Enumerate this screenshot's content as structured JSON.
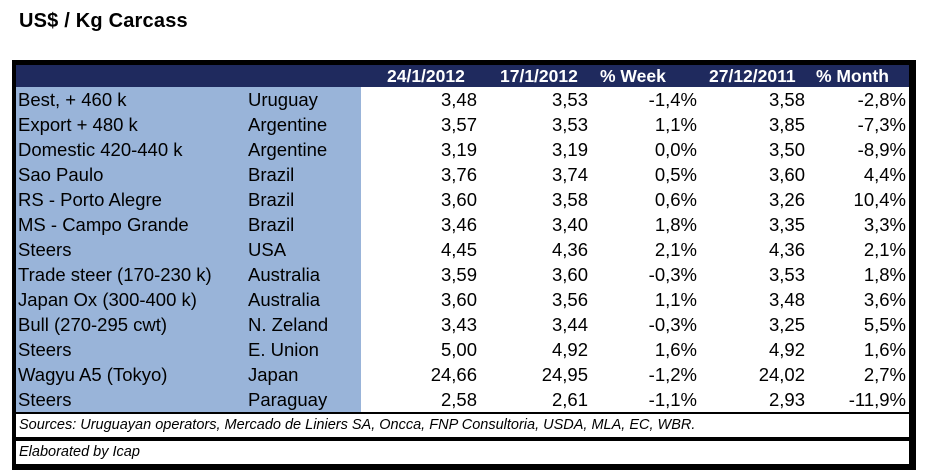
{
  "title": "US$ / Kg Carcass",
  "header": {
    "col1": "24/1/2012",
    "col2": "17/1/2012",
    "col3": "% Week",
    "col4": "27/12/2011",
    "col5": "% Month"
  },
  "rows": [
    {
      "name": "Best, + 460 k",
      "country": "Uruguay",
      "v1": "3,48",
      "v2": "3,53",
      "week": "-1,4%",
      "v3": "3,58",
      "month": "-2,8%"
    },
    {
      "name": "Export + 480 k",
      "country": "Argentine",
      "v1": "3,57",
      "v2": "3,53",
      "week": "1,1%",
      "v3": "3,85",
      "month": "-7,3%"
    },
    {
      "name": "Domestic 420-440 k",
      "country": "Argentine",
      "v1": "3,19",
      "v2": "3,19",
      "week": "0,0%",
      "v3": "3,50",
      "month": "-8,9%"
    },
    {
      "name": "Sao Paulo",
      "country": "Brazil",
      "v1": "3,76",
      "v2": "3,74",
      "week": "0,5%",
      "v3": "3,60",
      "month": "4,4%"
    },
    {
      "name": "RS - Porto Alegre",
      "country": "Brazil",
      "v1": "3,60",
      "v2": "3,58",
      "week": "0,6%",
      "v3": "3,26",
      "month": "10,4%"
    },
    {
      "name": "MS - Campo Grande",
      "country": "Brazil",
      "v1": "3,46",
      "v2": "3,40",
      "week": "1,8%",
      "v3": "3,35",
      "month": "3,3%"
    },
    {
      "name": "Steers",
      "country": "USA",
      "v1": "4,45",
      "v2": "4,36",
      "week": "2,1%",
      "v3": "4,36",
      "month": "2,1%"
    },
    {
      "name": "Trade steer (170-230 k)",
      "country": "Australia",
      "v1": "3,59",
      "v2": "3,60",
      "week": "-0,3%",
      "v3": "3,53",
      "month": "1,8%"
    },
    {
      "name": "Japan Ox (300-400 k)",
      "country": "Australia",
      "v1": "3,60",
      "v2": "3,56",
      "week": "1,1%",
      "v3": "3,48",
      "month": "3,6%"
    },
    {
      "name": "Bull (270-295 cwt)",
      "country": "N. Zeland",
      "v1": "3,43",
      "v2": "3,44",
      "week": "-0,3%",
      "v3": "3,25",
      "month": "5,5%"
    },
    {
      "name": "Steers",
      "country": "E. Union",
      "v1": "5,00",
      "v2": "4,92",
      "week": "1,6%",
      "v3": "4,92",
      "month": "1,6%"
    },
    {
      "name": "Wagyu A5 (Tokyo)",
      "country": "Japan",
      "v1": "24,66",
      "v2": "24,95",
      "week": "-1,2%",
      "v3": "24,02",
      "month": "2,7%"
    },
    {
      "name": "Steers",
      "country": "Paraguay",
      "v1": "2,58",
      "v2": "2,61",
      "week": "-1,1%",
      "v3": "2,93",
      "month": "-11,9%"
    }
  ],
  "sources": "Sources: Uruguayan operators, Mercado de Liniers SA, Oncca, FNP Consultoria, USDA, MLA, EC, WBR.",
  "elaborated": "Elaborated by Icap"
}
